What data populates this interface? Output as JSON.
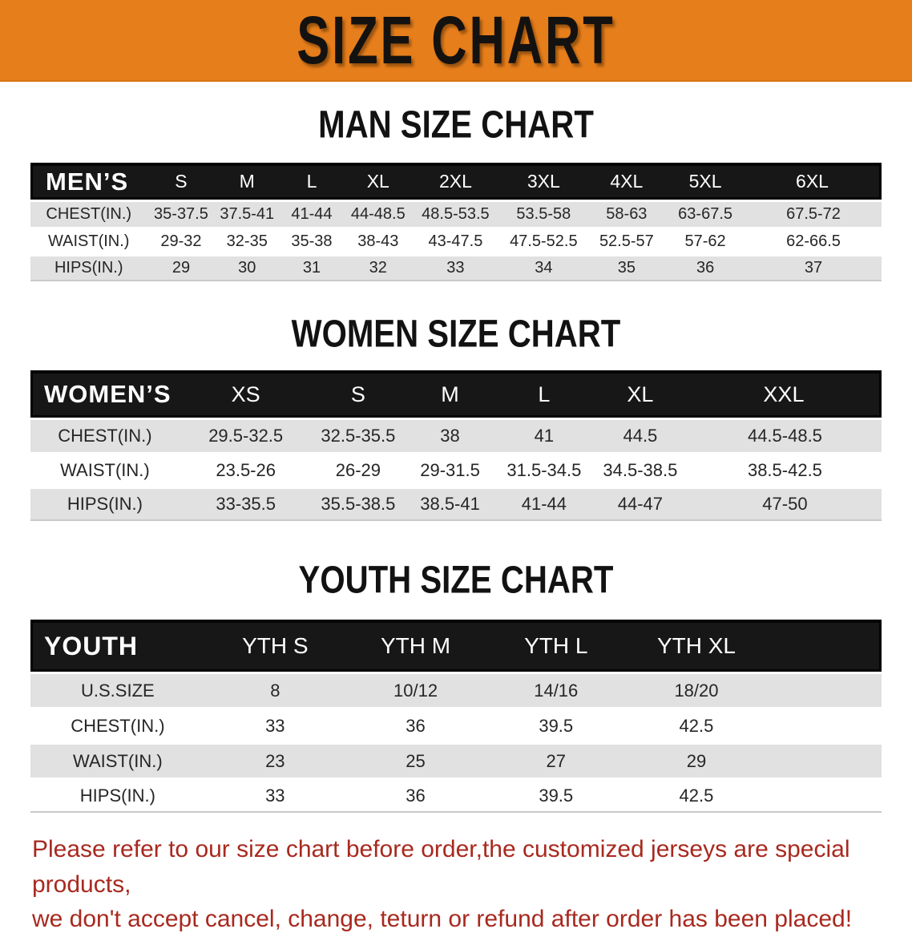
{
  "banner": {
    "title": "SIZE CHART",
    "bg_color": "#E67E1B"
  },
  "sections": {
    "men": {
      "heading": "MAN SIZE CHART",
      "table": {
        "title": "MEN’S",
        "sizes": [
          "S",
          "M",
          "L",
          "XL",
          "2XL",
          "3XL",
          "4XL",
          "5XL",
          "6XL"
        ],
        "rows": [
          {
            "label": "CHEST(IN.)",
            "values": [
              "35-37.5",
              "37.5-41",
              "41-44",
              "44-48.5",
              "48.5-53.5",
              "53.5-58",
              "58-63",
              "63-67.5",
              "67.5-72"
            ]
          },
          {
            "label": "WAIST(IN.)",
            "values": [
              "29-32",
              "32-35",
              "35-38",
              "38-43",
              "43-47.5",
              "47.5-52.5",
              "52.5-57",
              "57-62",
              "62-66.5"
            ]
          },
          {
            "label": "HIPS(IN.)",
            "values": [
              "29",
              "30",
              "31",
              "32",
              "33",
              "34",
              "35",
              "36",
              "37"
            ]
          }
        ],
        "col_widths": [
          "13.7%",
          "8.0%",
          "7.5%",
          "7.7%",
          "7.9%",
          "10.3%",
          "10.4%",
          "9.1%",
          "9.4%",
          "16.0%"
        ],
        "spacer": false
      }
    },
    "women": {
      "heading": "WOMEN SIZE CHART",
      "table": {
        "title": "WOMEN’S",
        "sizes": [
          "XS",
          "S",
          "M",
          "L",
          "XL",
          "XXL"
        ],
        "rows": [
          {
            "label": "CHEST(IN.)",
            "values": [
              "29.5-32.5",
              "32.5-35.5",
              "38",
              "41",
              "44.5",
              "44.5-48.5"
            ]
          },
          {
            "label": "WAIST(IN.)",
            "values": [
              "23.5-26",
              "26-29",
              "29-31.5",
              "31.5-34.5",
              "34.5-38.5",
              "38.5-42.5"
            ]
          },
          {
            "label": "HIPS(IN.)",
            "values": [
              "33-35.5",
              "35.5-38.5",
              "38.5-41",
              "41-44",
              "44-47",
              "47-50"
            ]
          }
        ],
        "col_widths": [
          "17.5%",
          "15.6%",
          "10.8%",
          "10.8%",
          "11.3%",
          "11.3%",
          "22.7%"
        ],
        "spacer": false
      }
    },
    "youth": {
      "heading": "YOUTH SIZE CHART",
      "table": {
        "title": "YOUTH",
        "sizes": [
          "YTH S",
          "YTH M",
          "YTH L",
          "YTH XL"
        ],
        "rows": [
          {
            "label": "U.S.SIZE",
            "values": [
              "8",
              "10/12",
              "14/16",
              "18/20"
            ]
          },
          {
            "label": "CHEST(IN.)",
            "values": [
              "33",
              "36",
              "39.5",
              "42.5"
            ]
          },
          {
            "label": "WAIST(IN.)",
            "values": [
              "23",
              "25",
              "27",
              "29"
            ]
          },
          {
            "label": "HIPS(IN.)",
            "values": [
              "33",
              "36",
              "39.5",
              "42.5"
            ]
          }
        ],
        "col_widths": [
          "20.5%",
          "16.5%",
          "16.5%",
          "16.5%",
          "16.5%",
          "13.5%"
        ],
        "spacer": true
      }
    }
  },
  "footer": {
    "color": "#A8291F",
    "line1": "Please refer to our size chart before order,the customized jerseys are special products,",
    "line2": "we don't accept cancel, change, teturn or refund after order has been placed!"
  }
}
